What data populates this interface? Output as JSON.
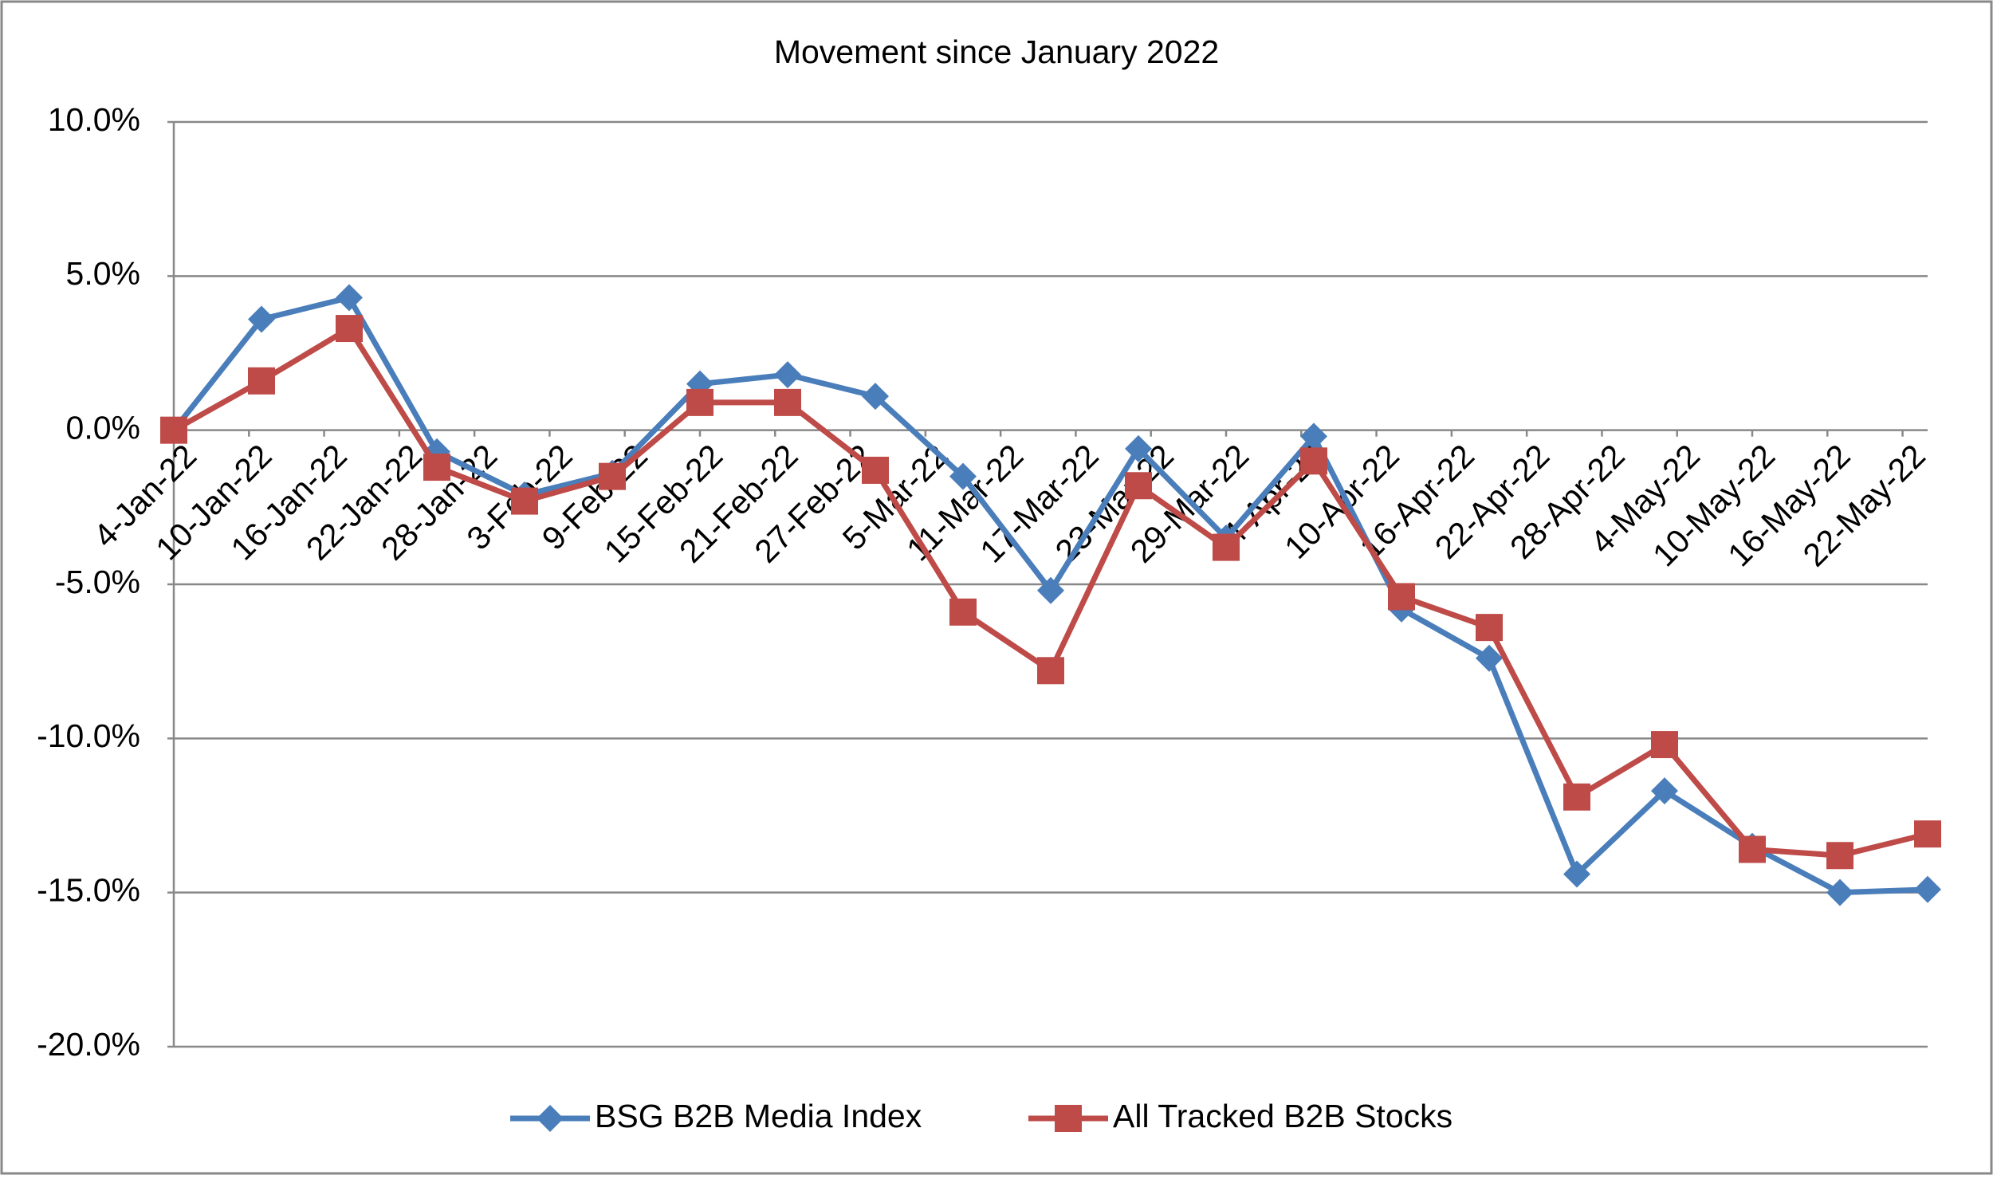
{
  "chart_data": {
    "type": "line",
    "title": "Movement since January 2022",
    "x": [
      "2022-01-04",
      "2022-01-11",
      "2022-01-18",
      "2022-01-25",
      "2022-02-01",
      "2022-02-08",
      "2022-02-15",
      "2022-02-22",
      "2022-03-01",
      "2022-03-08",
      "2022-03-15",
      "2022-03-22",
      "2022-03-29",
      "2022-04-05",
      "2022-04-12",
      "2022-04-19",
      "2022-04-26",
      "2022-05-03",
      "2022-05-10",
      "2022-05-17",
      "2022-05-24"
    ],
    "series": [
      {
        "name": "BSG B2B Media Index",
        "color": "#4a7ebb",
        "marker": "diamond",
        "values": [
          0,
          3.6,
          4.3,
          -0.7,
          -2.1,
          -1.4,
          1.5,
          1.8,
          1.1,
          -1.5,
          -5.2,
          -0.6,
          -3.5,
          -0.2,
          -5.8,
          -7.4,
          -14.4,
          -11.7,
          -13.5,
          -15.0,
          -14.9
        ]
      },
      {
        "name": "All Tracked B2B Stocks",
        "color": "#be4b48",
        "marker": "square",
        "values": [
          0,
          1.6,
          3.3,
          -1.2,
          -2.3,
          -1.5,
          0.9,
          0.9,
          -1.3,
          -5.9,
          -7.8,
          -1.8,
          -3.8,
          -1.0,
          -5.4,
          -6.4,
          -11.9,
          -10.2,
          -13.6,
          -13.8,
          -13.1
        ]
      }
    ],
    "xlim": [
      "2022-01-04",
      "2022-05-24"
    ],
    "xticks": [
      {
        "value": "2022-01-04",
        "label": "4-Jan-22"
      },
      {
        "value": "2022-01-10",
        "label": "10-Jan-22"
      },
      {
        "value": "2022-01-16",
        "label": "16-Jan-22"
      },
      {
        "value": "2022-01-22",
        "label": "22-Jan-22"
      },
      {
        "value": "2022-01-28",
        "label": "28-Jan-22"
      },
      {
        "value": "2022-02-03",
        "label": "3-Feb-22"
      },
      {
        "value": "2022-02-09",
        "label": "9-Feb-22"
      },
      {
        "value": "2022-02-15",
        "label": "15-Feb-22"
      },
      {
        "value": "2022-02-21",
        "label": "21-Feb-22"
      },
      {
        "value": "2022-02-27",
        "label": "27-Feb-22"
      },
      {
        "value": "2022-03-05",
        "label": "5-Mar-22"
      },
      {
        "value": "2022-03-11",
        "label": "11-Mar-22"
      },
      {
        "value": "2022-03-17",
        "label": "17-Mar-22"
      },
      {
        "value": "2022-03-23",
        "label": "23-Mar-22"
      },
      {
        "value": "2022-03-29",
        "label": "29-Mar-22"
      },
      {
        "value": "2022-04-04",
        "label": "4-Apr-22"
      },
      {
        "value": "2022-04-10",
        "label": "10-Apr-22"
      },
      {
        "value": "2022-04-16",
        "label": "16-Apr-22"
      },
      {
        "value": "2022-04-22",
        "label": "22-Apr-22"
      },
      {
        "value": "2022-04-28",
        "label": "28-Apr-22"
      },
      {
        "value": "2022-05-04",
        "label": "4-May-22"
      },
      {
        "value": "2022-05-10",
        "label": "10-May-22"
      },
      {
        "value": "2022-05-16",
        "label": "16-May-22"
      },
      {
        "value": "2022-05-22",
        "label": "22-May-22"
      }
    ],
    "ylim": [
      -20,
      10
    ],
    "yticks": [
      {
        "value": 10,
        "label": "10.0%"
      },
      {
        "value": 5,
        "label": "5.0%"
      },
      {
        "value": 0,
        "label": "0.0%"
      },
      {
        "value": -5,
        "label": "-5.0%"
      },
      {
        "value": -10,
        "label": "-10.0%"
      },
      {
        "value": -15,
        "label": "-15.0%"
      },
      {
        "value": -20,
        "label": "-20.0%"
      }
    ],
    "grid": true,
    "legend": "bottom"
  }
}
